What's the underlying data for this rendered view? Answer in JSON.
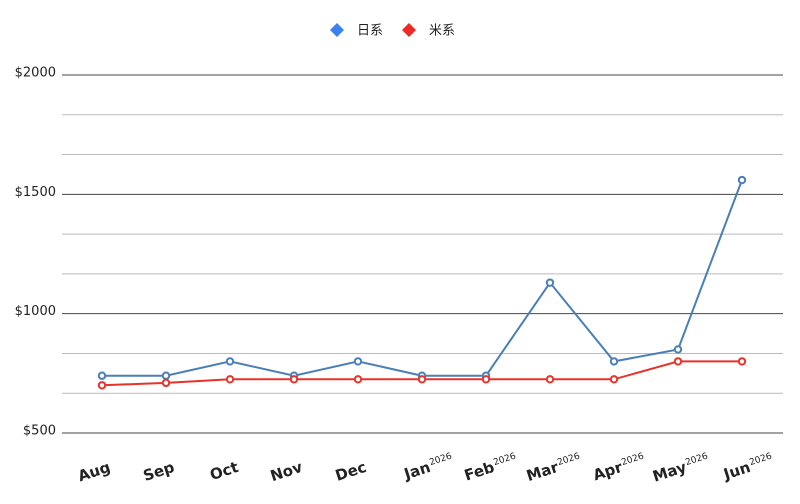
{
  "chart_data": {
    "type": "line",
    "categories": [
      "Aug",
      "Sep",
      "Oct",
      "Nov",
      "Dec",
      "Jan",
      "Feb",
      "Mar",
      "Apr",
      "May",
      "Jun"
    ],
    "category_years": [
      null,
      null,
      null,
      null,
      null,
      "2026",
      "2026",
      "2026",
      "2026",
      "2026",
      "2026"
    ],
    "series": [
      {
        "name": "日系",
        "color": "#4a7fb5",
        "legend_color": "#3b82f0",
        "values": [
          740,
          740,
          800,
          740,
          800,
          740,
          740,
          1130,
          800,
          850,
          1560
        ]
      },
      {
        "name": "米系",
        "color": "#e8332b",
        "legend_color": "#ee2a24",
        "values": [
          700,
          710,
          725,
          725,
          725,
          725,
          725,
          725,
          725,
          800,
          800
        ]
      }
    ],
    "ylim": [
      500,
      2000
    ],
    "yticks": [
      {
        "value": 500,
        "label": "$500"
      },
      {
        "value": 1000,
        "label": "$1000"
      },
      {
        "value": 1500,
        "label": "$1500"
      },
      {
        "value": 2000,
        "label": "$2000"
      }
    ],
    "minor_yticks": [
      666.7,
      833.3,
      1166.7,
      1333.3,
      1666.7,
      1833.3
    ],
    "grid": true,
    "legend": "top"
  }
}
